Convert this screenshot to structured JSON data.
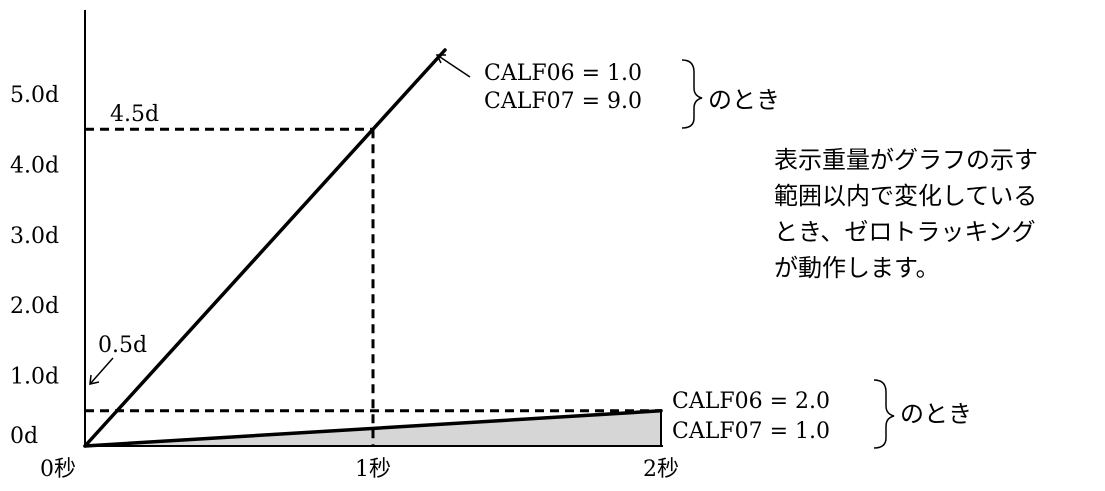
{
  "chart_data": {
    "type": "line",
    "x_unit": "秒",
    "xlim": [
      0,
      2
    ],
    "ylim": [
      0,
      5.5
    ],
    "x_ticks": [
      {
        "value": 0,
        "label": "0秒"
      },
      {
        "value": 1,
        "label": "1秒"
      },
      {
        "value": 2,
        "label": "2秒"
      }
    ],
    "y_ticks": [
      {
        "value": 0,
        "label": "0d"
      },
      {
        "value": 1,
        "label": "1.0d"
      },
      {
        "value": 2,
        "label": "2.0d"
      },
      {
        "value": 3,
        "label": "3.0d"
      },
      {
        "value": 4,
        "label": "4.0d"
      },
      {
        "value": 5,
        "label": "5.0d"
      }
    ],
    "series": [
      {
        "name_lines": [
          "CALF06 = 1.0",
          "CALF07 = 9.0"
        ],
        "suffix": "のとき",
        "x": [
          0,
          1.25
        ],
        "y": [
          0,
          5.625
        ],
        "color": "#000000"
      },
      {
        "name_lines": [
          "CALF06 = 2.0",
          "CALF07 = 1.0"
        ],
        "suffix": "のとき",
        "x": [
          0,
          2
        ],
        "y": [
          0,
          0.5
        ],
        "color": "#000000",
        "fill": "#d6d6d6"
      }
    ],
    "reference_lines": [
      {
        "axis": "y",
        "value": 4.5,
        "label": "4.5d",
        "x_end": 1
      },
      {
        "axis": "x",
        "value": 1,
        "y_end": 4.5
      },
      {
        "axis": "y",
        "value": 0.5,
        "label": "0.5d",
        "x_end": 2
      }
    ],
    "note_lines": [
      "表示重量がグラフの示す",
      "範囲以内で変化している",
      "とき、ゼロトラッキング",
      "が動作します。"
    ]
  }
}
